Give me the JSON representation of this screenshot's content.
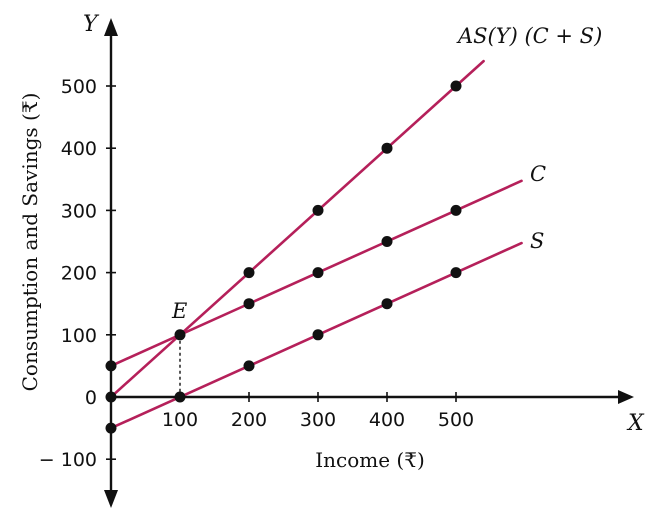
{
  "chart_data": {
    "type": "line",
    "xlabel": "Income (₹)",
    "ylabel": "Consumption and Savings (₹)",
    "x_axis_letter": "X",
    "y_axis_letter": "Y",
    "x_ticks": [
      100,
      200,
      300,
      400,
      500
    ],
    "y_ticks": [
      -100,
      0,
      100,
      200,
      300,
      400,
      500
    ],
    "xlim": [
      0,
      600
    ],
    "ylim": [
      -100,
      550
    ],
    "grid": false,
    "line_color": "#b5205a",
    "marker_color": "#111111",
    "series": [
      {
        "name": "AS(Y) (C + S)",
        "x": [
          0,
          100,
          200,
          300,
          400,
          500
        ],
        "y": [
          0,
          100,
          200,
          300,
          400,
          500
        ],
        "line_extent": [
          0,
          540
        ]
      },
      {
        "name": "C",
        "x": [
          0,
          100,
          200,
          300,
          400,
          500
        ],
        "y": [
          50,
          100,
          150,
          200,
          250,
          300
        ],
        "line_extent": [
          0,
          595
        ]
      },
      {
        "name": "S",
        "x": [
          0,
          100,
          200,
          300,
          400,
          500
        ],
        "y": [
          -50,
          0,
          50,
          100,
          150,
          200
        ],
        "line_extent": [
          0,
          595
        ]
      }
    ],
    "annotations": [
      {
        "label": "E",
        "x": 100,
        "y": 100
      }
    ]
  }
}
